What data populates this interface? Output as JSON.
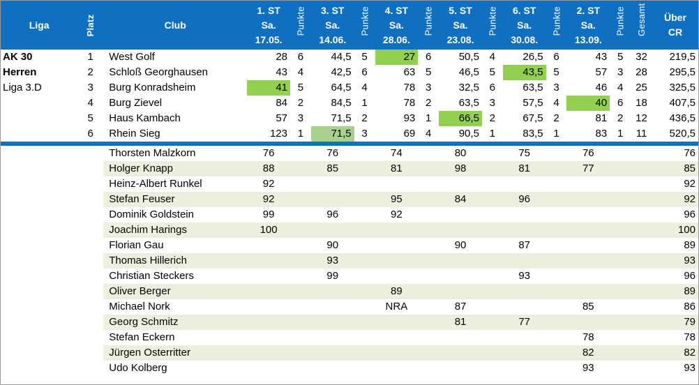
{
  "header": {
    "liga": "Liga",
    "platz": "Platz",
    "club": "Club",
    "punkte": "Punkte",
    "gesamt": "Gesamt",
    "ueber_cr": [
      "Über",
      "CR"
    ],
    "rounds": [
      {
        "a": "1. ST",
        "b": "Sa.",
        "c": "17.05."
      },
      {
        "a": "3. ST",
        "b": "Sa.",
        "c": "14.06."
      },
      {
        "a": "4. ST",
        "b": "Sa.",
        "c": "28.06."
      },
      {
        "a": "5. ST",
        "b": "Sa.",
        "c": "23.08."
      },
      {
        "a": "6. ST",
        "b": "Sa.",
        "c": "30.08."
      },
      {
        "a": "2. ST",
        "b": "Sa.",
        "c": "13.09."
      }
    ]
  },
  "liga_info": [
    "AK 30",
    "Herren",
    "Liga 3.D"
  ],
  "teams": [
    {
      "platz": "1",
      "club": "West Golf",
      "r": [
        "28",
        "6",
        "44,5",
        "5",
        "27",
        "6",
        "50,5",
        "4",
        "26,5",
        "6",
        "43",
        "5"
      ],
      "gesamt": "32",
      "cr": "219,5"
    },
    {
      "platz": "2",
      "club": "Schloß Georghausen",
      "r": [
        "43",
        "4",
        "42,5",
        "6",
        "63",
        "5",
        "46,5",
        "5",
        "43,5",
        "5",
        "57",
        "3"
      ],
      "gesamt": "28",
      "cr": "295,5"
    },
    {
      "platz": "3",
      "club": "Burg Konradsheim",
      "r": [
        "41",
        "5",
        "64,5",
        "4",
        "78",
        "3",
        "32,5",
        "6",
        "63,5",
        "3",
        "46",
        "4"
      ],
      "gesamt": "25",
      "cr": "325,5"
    },
    {
      "platz": "4",
      "club": "Burg Zievel",
      "r": [
        "84",
        "2",
        "84,5",
        "1",
        "78",
        "2",
        "63,5",
        "3",
        "57,5",
        "4",
        "40",
        "6"
      ],
      "gesamt": "18",
      "cr": "407,5"
    },
    {
      "platz": "5",
      "club": "Haus Kambach",
      "r": [
        "57",
        "3",
        "71,5",
        "2",
        "93",
        "1",
        "66,5",
        "2",
        "67,5",
        "2",
        "81",
        "2"
      ],
      "gesamt": "12",
      "cr": "436,5"
    },
    {
      "platz": "6",
      "club": "Rhein Sieg",
      "r": [
        "123",
        "1",
        "71,5",
        "3",
        "69",
        "4",
        "90,5",
        "1",
        "83,5",
        "1",
        "83",
        "1"
      ],
      "gesamt": "11",
      "cr": "520,5"
    }
  ],
  "players": [
    {
      "name": "Thorsten Malzkorn",
      "s": [
        "76",
        "76",
        "74",
        "80",
        "75",
        "76"
      ],
      "cr": "76"
    },
    {
      "name": "Holger Knapp",
      "s": [
        "88",
        "85",
        "81",
        "98",
        "81",
        "77"
      ],
      "cr": "85"
    },
    {
      "name": "Heinz-Albert Runkel",
      "s": [
        "92",
        "",
        "",
        "",
        "",
        ""
      ],
      "cr": "92"
    },
    {
      "name": "Stefan Feuser",
      "s": [
        "92",
        "",
        "95",
        "84",
        "96",
        ""
      ],
      "cr": "92"
    },
    {
      "name": "Dominik Goldstein",
      "s": [
        "99",
        "96",
        "92",
        "",
        "",
        ""
      ],
      "cr": "96"
    },
    {
      "name": "Joachim Harings",
      "s": [
        "100",
        "",
        "",
        "",
        "",
        ""
      ],
      "cr": "100"
    },
    {
      "name": "Florian Gau",
      "s": [
        "",
        "90",
        "",
        "90",
        "87",
        ""
      ],
      "cr": "89"
    },
    {
      "name": "Thomas Hillerich",
      "s": [
        "",
        "93",
        "",
        "",
        "",
        ""
      ],
      "cr": "93"
    },
    {
      "name": "Christian Steckers",
      "s": [
        "",
        "99",
        "",
        "",
        "93",
        ""
      ],
      "cr": "96"
    },
    {
      "name": "Oliver Berger",
      "s": [
        "",
        "",
        "89",
        "",
        "",
        ""
      ],
      "cr": "89"
    },
    {
      "name": "Michael Nork",
      "s": [
        "",
        "",
        "NRA",
        "87",
        "",
        "85"
      ],
      "cr": "86"
    },
    {
      "name": "Georg Schmitz",
      "s": [
        "",
        "",
        "",
        "81",
        "77",
        ""
      ],
      "cr": "79"
    },
    {
      "name": "Stefan Eckern",
      "s": [
        "",
        "",
        "",
        "",
        "",
        "78"
      ],
      "cr": "78"
    },
    {
      "name": "Jürgen Osterritter",
      "s": [
        "",
        "",
        "",
        "",
        "",
        "82"
      ],
      "cr": "82"
    },
    {
      "name": "Udo Kolberg",
      "s": [
        "",
        "",
        "",
        "",
        "",
        "93"
      ],
      "cr": "93"
    }
  ],
  "highlights": [
    [
      0,
      4
    ],
    [
      1,
      8
    ],
    [
      2,
      0
    ],
    [
      3,
      10
    ],
    [
      4,
      6
    ],
    [
      5,
      2
    ]
  ],
  "colors": {
    "header_bg": "#0f70c1",
    "highlight": "#92d050",
    "row_alt": "#ebf1de"
  }
}
